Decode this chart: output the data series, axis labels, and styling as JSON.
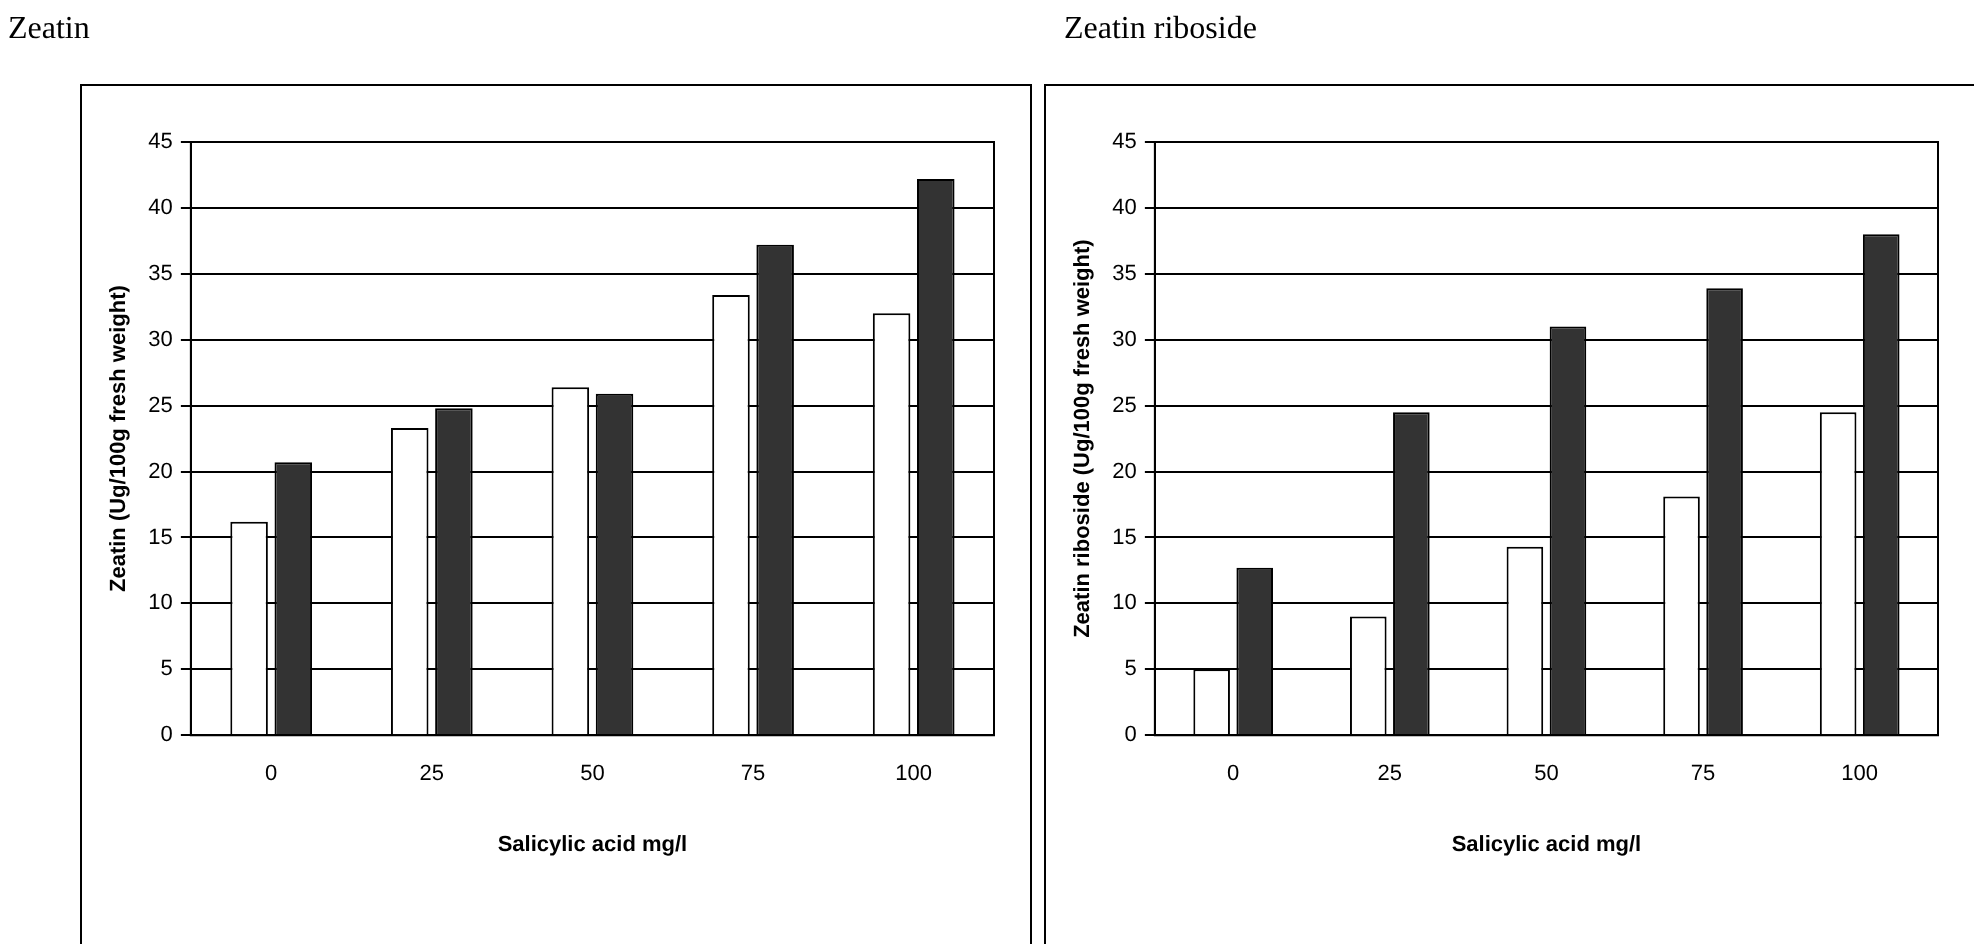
{
  "chart_data": [
    {
      "type": "bar",
      "title": "Zeatin",
      "xlabel": "Salicylic acid mg/l",
      "ylabel": "Zeatin (Ug/100g fresh weight)",
      "categories": [
        "0",
        "25",
        "50",
        "75",
        "100"
      ],
      "series": [
        {
          "color": "#ffffff",
          "values": [
            16.2,
            23.3,
            26.4,
            33.4,
            32.0
          ]
        },
        {
          "color": "#333333",
          "values": [
            20.7,
            24.8,
            25.9,
            37.2,
            42.2
          ]
        }
      ],
      "ylim": [
        0,
        45
      ],
      "yticks": [
        0,
        5,
        10,
        15,
        20,
        25,
        30,
        35,
        40,
        45
      ],
      "grid": "y",
      "legend": false
    },
    {
      "type": "bar",
      "title": "Zeatin riboside",
      "xlabel": "Salicylic acid mg/l",
      "ylabel": "Zeatin riboside (Ug/100g fresh weight)",
      "categories": [
        "0",
        "25",
        "50",
        "75",
        "100"
      ],
      "series": [
        {
          "color": "#ffffff",
          "values": [
            5.0,
            9.0,
            14.3,
            18.1,
            24.5
          ]
        },
        {
          "color": "#333333",
          "values": [
            12.7,
            24.5,
            31.0,
            33.9,
            38.0
          ]
        }
      ],
      "ylim": [
        0,
        45
      ],
      "yticks": [
        0,
        5,
        10,
        15,
        20,
        25,
        30,
        35,
        40,
        45
      ],
      "grid": "y",
      "legend": false
    }
  ]
}
